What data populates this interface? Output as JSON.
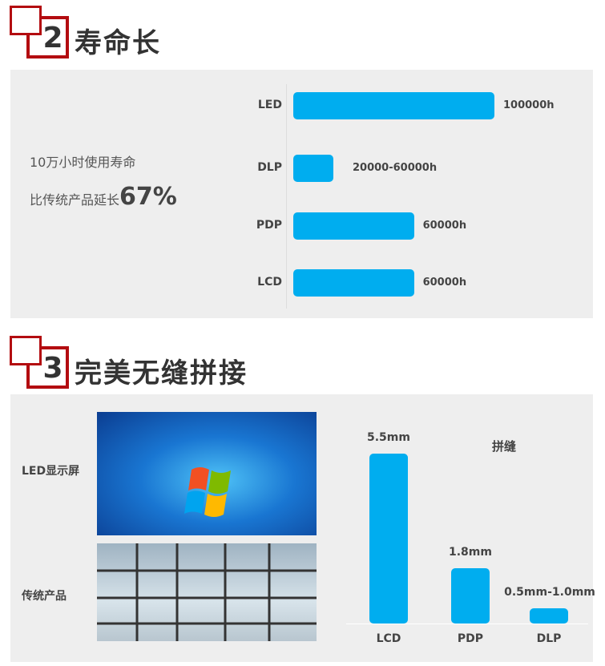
{
  "section2": {
    "number": "2",
    "title": "寿命长",
    "line1": "10万小时使用寿命",
    "line2_prefix": "比传统产品延长",
    "line2_highlight": "67%"
  },
  "section3": {
    "number": "3",
    "title": "完美无缝拼接",
    "led_label": "LED显示屏",
    "traditional_label": "传统产品"
  },
  "colors": {
    "bar": "#00adef",
    "accent_red": "#b30c10",
    "panel": "#eeeeee"
  },
  "chart_data": [
    {
      "type": "bar",
      "orientation": "horizontal",
      "categories": [
        "LED",
        "DLP",
        "PDP",
        "LCD"
      ],
      "values": [
        100000,
        20000,
        60000,
        60000
      ],
      "labels": [
        "100000h",
        "20000-60000h",
        "60000h",
        "60000h"
      ]
    },
    {
      "type": "bar",
      "orientation": "vertical",
      "title": "拼缝",
      "categories": [
        "LCD",
        "PDP",
        "DLP"
      ],
      "values": [
        5.5,
        1.8,
        0.5
      ],
      "labels": [
        "5.5mm",
        "1.8mm",
        "0.5mm-1.0mm"
      ]
    }
  ]
}
